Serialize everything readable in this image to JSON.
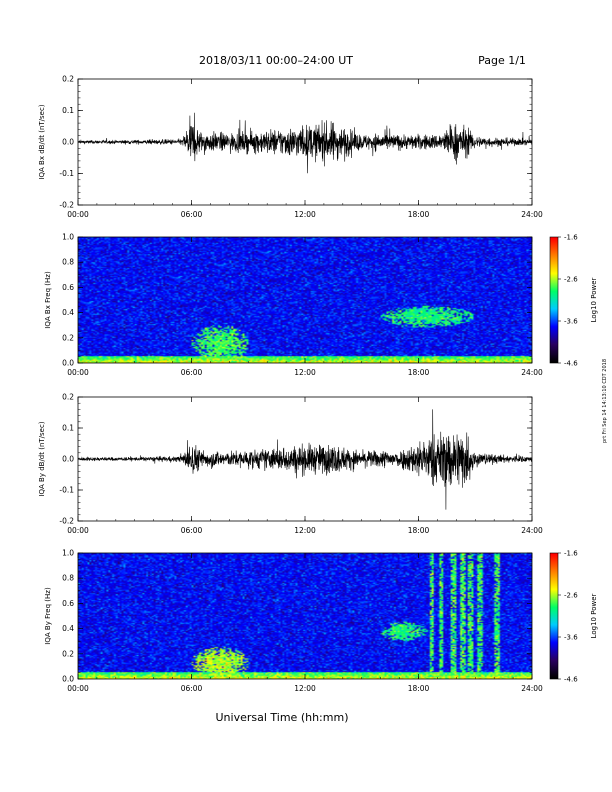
{
  "header": {
    "title": "2018/03/11  00:00–24:00 UT",
    "page": "Page 1/1"
  },
  "footer": {
    "xlabel": "Universal Time (hh:mm)",
    "side_note": "prt Fri Sep 14 14:13:10 CDT 2018"
  },
  "colors": {
    "trace": "#000000",
    "colormap": [
      "#000000",
      "#2a0060",
      "#0000ff",
      "#00ccff",
      "#00ff66",
      "#ffff00",
      "#ff8000",
      "#ff0000"
    ]
  },
  "chart_data": [
    {
      "type": "line",
      "ylabel": "IQA Bx dB/dt (nT/sec)",
      "xlim": [
        "00:00",
        "24:00"
      ],
      "ylim": [
        -0.2,
        0.2
      ],
      "x_ticks": [
        "00:00",
        "06:00",
        "12:00",
        "18:00",
        "24:00"
      ],
      "y_ticks": [
        "-0.2",
        "-0.1",
        "0.0",
        "0.1",
        "0.2"
      ],
      "series": [
        {
          "x_hours": [
            0,
            2,
            4,
            5.5,
            6,
            6.5,
            8,
            10,
            12,
            13.5,
            15,
            16,
            17,
            19,
            20,
            20.5,
            21,
            22,
            24
          ],
          "amplitude": [
            0.012,
            0.012,
            0.015,
            0.02,
            0.16,
            0.07,
            0.06,
            0.08,
            0.11,
            0.13,
            0.05,
            0.06,
            0.05,
            0.05,
            0.13,
            0.1,
            0.04,
            0.03,
            0.02
          ]
        }
      ]
    },
    {
      "type": "heatmap",
      "ylabel": "IQA Bx Freq (Hz)",
      "xlim": [
        "00:00",
        "24:00"
      ],
      "ylim": [
        0.0,
        1.0
      ],
      "x_ticks": [
        "00:00",
        "06:00",
        "12:00",
        "18:00",
        "24:00"
      ],
      "y_ticks": [
        "0.0",
        "0.2",
        "0.4",
        "0.6",
        "0.8",
        "1.0"
      ],
      "colorbar": {
        "label": "Log10 Power",
        "range": [
          -4.6,
          -1.6
        ],
        "ticks": [
          "-1.6",
          "-2.6",
          "-3.6",
          "-4.6"
        ]
      },
      "features": [
        {
          "kind": "low-freq-band",
          "x_hours": [
            0,
            24
          ],
          "freq_hz": [
            0.0,
            0.05
          ],
          "log_power": -2.5
        },
        {
          "kind": "blob",
          "x_hours": [
            6,
            9
          ],
          "freq_hz": [
            0.0,
            0.3
          ],
          "log_power": -2.8
        },
        {
          "kind": "blob",
          "x_hours": [
            16,
            21
          ],
          "freq_hz": [
            0.28,
            0.45
          ],
          "log_power": -2.9
        }
      ]
    },
    {
      "type": "line",
      "ylabel": "IQA By dB/dt (nT/sec)",
      "xlim": [
        "00:00",
        "24:00"
      ],
      "ylim": [
        -0.2,
        0.2
      ],
      "x_ticks": [
        "00:00",
        "06:00",
        "12:00",
        "18:00",
        "24:00"
      ],
      "y_ticks": [
        "-0.2",
        "-0.1",
        "0.0",
        "0.1",
        "0.2"
      ],
      "series": [
        {
          "x_hours": [
            0,
            2,
            4,
            5.5,
            6,
            6.5,
            8,
            10,
            12,
            13.5,
            15,
            16,
            17,
            18.5,
            19.5,
            20.5,
            21,
            22,
            24
          ],
          "amplitude": [
            0.012,
            0.012,
            0.015,
            0.02,
            0.12,
            0.06,
            0.05,
            0.07,
            0.1,
            0.1,
            0.05,
            0.06,
            0.06,
            0.15,
            0.2,
            0.2,
            0.05,
            0.03,
            0.02
          ]
        }
      ]
    },
    {
      "type": "heatmap",
      "ylabel": "IQA By Freq (Hz)",
      "xlim": [
        "00:00",
        "24:00"
      ],
      "ylim": [
        0.0,
        1.0
      ],
      "x_ticks": [
        "00:00",
        "06:00",
        "12:00",
        "18:00",
        "24:00"
      ],
      "y_ticks": [
        "0.0",
        "0.2",
        "0.4",
        "0.6",
        "0.8",
        "1.0"
      ],
      "colorbar": {
        "label": "Log10 Power",
        "range": [
          -4.6,
          -1.6
        ],
        "ticks": [
          "-1.6",
          "-2.6",
          "-3.6",
          "-4.6"
        ]
      },
      "features": [
        {
          "kind": "low-freq-band",
          "x_hours": [
            0,
            24
          ],
          "freq_hz": [
            0.0,
            0.05
          ],
          "log_power": -2.5
        },
        {
          "kind": "blob",
          "x_hours": [
            6,
            9
          ],
          "freq_hz": [
            0.0,
            0.25
          ],
          "log_power": -2.6
        },
        {
          "kind": "blob",
          "x_hours": [
            16,
            18.5
          ],
          "freq_hz": [
            0.3,
            0.45
          ],
          "log_power": -2.9
        },
        {
          "kind": "vertical-bands",
          "x_hours": [
            18.7,
            19.2,
            19.9,
            20.4,
            20.8,
            21.3,
            22.2
          ],
          "freq_hz": [
            0.0,
            1.0
          ],
          "log_power": -2.8
        }
      ]
    }
  ]
}
